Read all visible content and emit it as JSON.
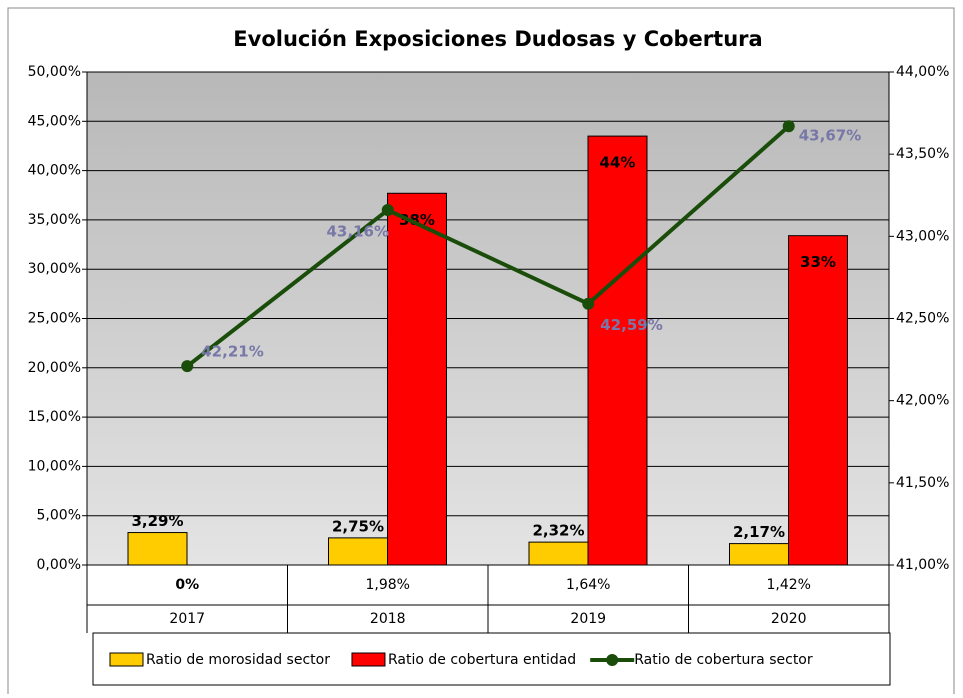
{
  "chart_data": {
    "type": "bar_line",
    "title": "Evolución Exposiciones Dudosas y Cobertura",
    "categories": [
      "2017",
      "2018",
      "2019",
      "2020"
    ],
    "table_row": [
      "0%",
      "1,98%",
      "1,64%",
      "1,42%"
    ],
    "series": [
      {
        "name": "Ratio de morosidad sector",
        "type": "bar",
        "color": "#ffcc00",
        "values": [
          3.29,
          2.75,
          2.32,
          2.17
        ],
        "value_labels": [
          "3,29%",
          "2,75%",
          "2,32%",
          "2,17%"
        ]
      },
      {
        "name": "Ratio de cobertura entidad",
        "type": "bar",
        "color": "#ff0000",
        "values": [
          null,
          37.7,
          43.5,
          33.4
        ],
        "value_labels": [
          null,
          "38%",
          "44%",
          "33%"
        ]
      },
      {
        "name": "Ratio de cobertura sector",
        "type": "line",
        "axis": "y2",
        "color": "#1a4d0a",
        "values": [
          42.21,
          43.16,
          42.59,
          43.67
        ],
        "value_labels": [
          "42,21%",
          "43,16%",
          "42,59%",
          "43,67%"
        ]
      }
    ],
    "ylim": [
      0,
      50
    ],
    "yticks": [
      {
        "value": 0,
        "label": "0,00%"
      },
      {
        "value": 5,
        "label": "5,00%"
      },
      {
        "value": 10,
        "label": "10,00%"
      },
      {
        "value": 15,
        "label": "15,00%"
      },
      {
        "value": 20,
        "label": "20,00%"
      },
      {
        "value": 25,
        "label": "25,00%"
      },
      {
        "value": 30,
        "label": "30,00%"
      },
      {
        "value": 35,
        "label": "35,00%"
      },
      {
        "value": 40,
        "label": "40,00%"
      },
      {
        "value": 45,
        "label": "45,00%"
      },
      {
        "value": 50,
        "label": "50,00%"
      }
    ],
    "y2lim": [
      41,
      44
    ],
    "y2ticks": [
      {
        "value": 41,
        "label": "41,00%"
      },
      {
        "value": 41.5,
        "label": "41,50%"
      },
      {
        "value": 42,
        "label": "42,00%"
      },
      {
        "value": 42.5,
        "label": "42,50%"
      },
      {
        "value": 43,
        "label": "43,00%"
      },
      {
        "value": 43.5,
        "label": "43,50%"
      },
      {
        "value": 44,
        "label": "44,00%"
      }
    ],
    "grid": true,
    "legend": "bottom"
  }
}
